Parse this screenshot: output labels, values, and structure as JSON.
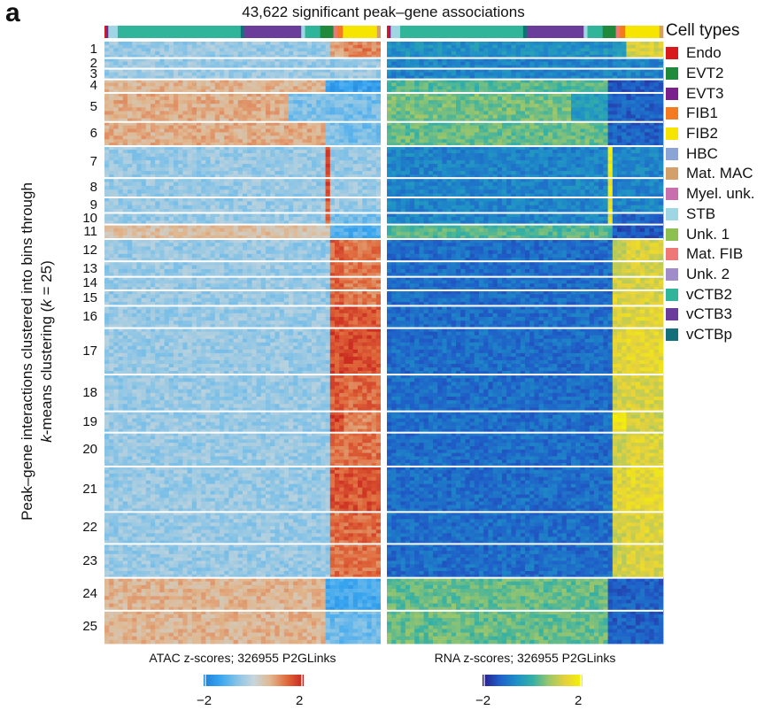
{
  "panel_letter": "a",
  "chart_data": {
    "type": "heatmap",
    "title": "43,622 significant peak–gene associations",
    "ylabel_line1": "Peak–gene interactions clustered into bins through",
    "ylabel_line2_italic": "k",
    "ylabel_line2_rest": "-means clustering (",
    "ylabel_line2_k": "k",
    "ylabel_line2_end": " = 25)",
    "clusters": [
      "1",
      "2",
      "3",
      "4",
      "5",
      "6",
      "7",
      "8",
      "9",
      "10",
      "11",
      "12",
      "13",
      "14",
      "15",
      "16",
      "17",
      "18",
      "19",
      "20",
      "21",
      "22",
      "23",
      "24",
      "25"
    ],
    "cluster_sizes": [
      17,
      11,
      11,
      14,
      30,
      25,
      33,
      20,
      16,
      12,
      15,
      23,
      16,
      14,
      16,
      23,
      48,
      38,
      22,
      35,
      47,
      33,
      35,
      34,
      34
    ],
    "annotation_order": [
      "Endo",
      "EVT3",
      "STB",
      "vCTB2",
      "vCTBp",
      "vCTB3",
      "STB",
      "vCTB2",
      "EVT2",
      "Mat. FIB",
      "FIB1",
      "FIB2",
      "Mat. MAC"
    ],
    "annotation_widths": [
      1,
      1,
      5,
      65,
      2,
      30,
      2,
      8,
      7,
      2,
      3,
      18,
      2
    ],
    "atac_panel": {
      "label": "ATAC z-scores; 326955 P2GLinks",
      "colorbar_min": "−2",
      "colorbar_max": "2",
      "colormap": [
        "#1e7fd8",
        "#3aa6f0",
        "#86c3e6",
        "#c8d6dc",
        "#e0b78f",
        "#e06a3c",
        "#c8221c"
      ]
    },
    "rna_panel": {
      "label": "RNA z-scores; 326955 P2GLinks",
      "colorbar_min": "−2",
      "colorbar_max": "2",
      "colormap": [
        "#2b1a86",
        "#1f5ec8",
        "#1f8fc8",
        "#33b0a6",
        "#9ec76a",
        "#e8d23a",
        "#f5f500"
      ]
    }
  },
  "legend": {
    "title": "Cell types",
    "items": [
      {
        "label": "Endo",
        "color": "#d7191c"
      },
      {
        "label": "EVT2",
        "color": "#1f8a3c"
      },
      {
        "label": "EVT3",
        "color": "#7b1f8c"
      },
      {
        "label": "FIB1",
        "color": "#f47a20"
      },
      {
        "label": "FIB2",
        "color": "#f5e500"
      },
      {
        "label": "HBC",
        "color": "#8aa4d6"
      },
      {
        "label": "Mat. MAC",
        "color": "#d2a068"
      },
      {
        "label": "Myel. unk.",
        "color": "#c86fae"
      },
      {
        "label": "STB",
        "color": "#9ed6e4"
      },
      {
        "label": "Unk. 1",
        "color": "#8cc152"
      },
      {
        "label": "Mat. FIB",
        "color": "#ee7777"
      },
      {
        "label": "Unk. 2",
        "color": "#a08cc8"
      },
      {
        "label": "vCTB2",
        "color": "#30b59b"
      },
      {
        "label": "vCTB3",
        "color": "#6a3d9a"
      },
      {
        "label": "vCTBp",
        "color": "#136f7a"
      }
    ]
  }
}
